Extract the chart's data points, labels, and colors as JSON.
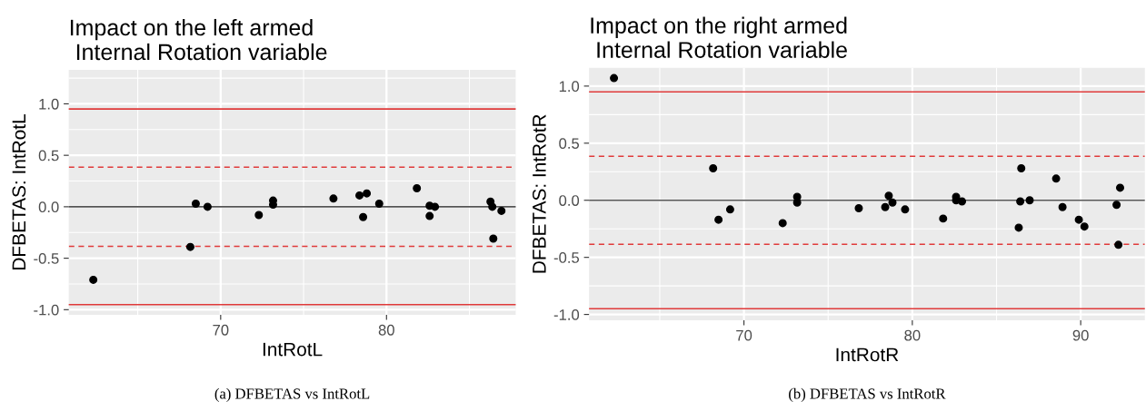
{
  "chart_data": [
    {
      "type": "scatter",
      "title": "Impact on the left armed\n Internal Rotation variable",
      "xlabel": "IntRotL",
      "ylabel": "DFBETAS: IntRotL",
      "x": [
        62.32,
        68.17,
        68.5,
        69.21,
        72.3,
        73.16,
        73.16,
        76.8,
        78.37,
        78.59,
        78.81,
        79.56,
        81.83,
        82.6,
        82.6,
        82.92,
        86.27,
        86.38,
        86.44,
        86.93
      ],
      "series": [
        {
          "color": "#000000",
          "values": [
            -0.71,
            -0.39,
            0.03,
            0.0,
            -0.08,
            0.06,
            0.02,
            0.08,
            0.11,
            -0.1,
            0.13,
            0.03,
            0.18,
            0.01,
            -0.09,
            0.0,
            0.05,
            0.0,
            -0.31,
            -0.04
          ]
        }
      ],
      "marker": "circle",
      "grid": true,
      "xlim": [
        60.84,
        87.79
      ],
      "xticks": [
        70,
        80
      ],
      "ylim": [
        -1.05,
        1.33
      ],
      "yticks": [
        {
          "value": -1.0,
          "label": "-1.0"
        },
        {
          "value": -0.5,
          "label": "-0.5"
        },
        {
          "value": 0.0,
          "label": "0.0"
        },
        {
          "value": 0.5,
          "label": "0.5"
        },
        {
          "value": 1.0,
          "label": "1.0"
        }
      ],
      "ref_lines": [
        {
          "axis": "y",
          "value": 0,
          "color": "#555555",
          "line_style": "solid"
        },
        {
          "axis": "y",
          "value": 0.95,
          "color": "#e03a3a",
          "line_style": "solid"
        },
        {
          "axis": "y",
          "value": -0.95,
          "color": "#e03a3a",
          "line_style": "solid"
        },
        {
          "axis": "y",
          "value": 0.385,
          "color": "#e03a3a",
          "line_style": "dashed"
        },
        {
          "axis": "y",
          "value": -0.385,
          "color": "#e03a3a",
          "line_style": "dashed"
        }
      ],
      "annotations": [
        "(a) DFBETAS vs IntRotL"
      ]
    },
    {
      "type": "scatter",
      "title": "Impact on the right armed\n Internal Rotation variable",
      "xlabel": "IntRotR",
      "ylabel": "DFBETAS: IntRotR",
      "x": [
        62.28,
        68.17,
        68.49,
        69.18,
        72.3,
        73.16,
        73.16,
        76.82,
        78.39,
        78.6,
        78.82,
        79.57,
        81.83,
        82.6,
        82.6,
        82.95,
        86.32,
        86.41,
        86.47,
        86.97,
        88.54,
        88.92,
        89.89,
        90.22,
        92.13,
        92.24,
        92.34
      ],
      "series": [
        {
          "color": "#000000",
          "values": [
            1.07,
            0.28,
            -0.17,
            -0.08,
            -0.2,
            0.03,
            -0.02,
            -0.07,
            -0.06,
            0.04,
            -0.02,
            -0.08,
            -0.16,
            0.03,
            0.0,
            -0.01,
            -0.24,
            -0.01,
            0.28,
            0.0,
            0.19,
            -0.06,
            -0.17,
            -0.23,
            -0.04,
            -0.39,
            0.11
          ]
        }
      ],
      "marker": "circle",
      "grid": true,
      "xlim": [
        60.8,
        93.81
      ],
      "xticks": [
        70,
        80,
        90
      ],
      "ylim": [
        -1.05,
        1.16
      ],
      "yticks": [
        {
          "value": -1.0,
          "label": "-1.0"
        },
        {
          "value": -0.5,
          "label": "-0.5"
        },
        {
          "value": 0.0,
          "label": "0.0"
        },
        {
          "value": 0.5,
          "label": "0.5"
        },
        {
          "value": 1.0,
          "label": "1.0"
        }
      ],
      "ref_lines": [
        {
          "axis": "y",
          "value": 0,
          "color": "#555555",
          "line_style": "solid"
        },
        {
          "axis": "y",
          "value": 0.95,
          "color": "#e03a3a",
          "line_style": "solid"
        },
        {
          "axis": "y",
          "value": -0.95,
          "color": "#e03a3a",
          "line_style": "solid"
        },
        {
          "axis": "y",
          "value": 0.385,
          "color": "#e03a3a",
          "line_style": "dashed"
        },
        {
          "axis": "y",
          "value": -0.385,
          "color": "#e03a3a",
          "line_style": "dashed"
        }
      ],
      "annotations": [
        "(b) DFBETAS vs IntRotR"
      ]
    }
  ]
}
